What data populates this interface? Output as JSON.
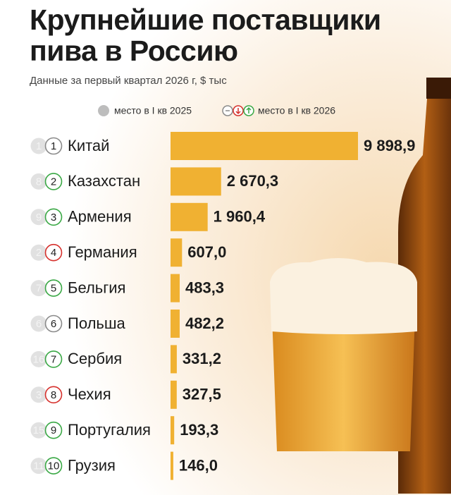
{
  "chart_data": {
    "type": "bar",
    "orientation": "horizontal",
    "title": "Крупнейшие поставщики пива в Россию",
    "subtitle": "Данные за первый квартал 2026 г, $ тыс",
    "legend": {
      "rank_2025": "место в I кв 2025",
      "rank_2026": "место в I кв 2026"
    },
    "categories": [
      "Китай",
      "Казахстан",
      "Армения",
      "Германия",
      "Бельгия",
      "Польша",
      "Сербия",
      "Чехия",
      "Португалия",
      "Грузия"
    ],
    "values": [
      9898.9,
      2670.3,
      1960.4,
      607.0,
      483.3,
      482.2,
      331.2,
      327.5,
      193.3,
      146.0
    ],
    "value_labels": [
      "9 898,9",
      "2 670,3",
      "1 960,4",
      "607,0",
      "483,3",
      "482,2",
      "331,2",
      "327,5",
      "193,3",
      "146,0"
    ],
    "rank_2025": [
      1,
      8,
      9,
      2,
      7,
      6,
      16,
      3,
      15,
      11
    ],
    "rank_2026": [
      1,
      2,
      3,
      4,
      5,
      6,
      7,
      8,
      9,
      10
    ],
    "color": "#f0b132",
    "up_color": "#3aa845",
    "down_color": "#d6302c",
    "same_color": "#8a8a8a"
  }
}
